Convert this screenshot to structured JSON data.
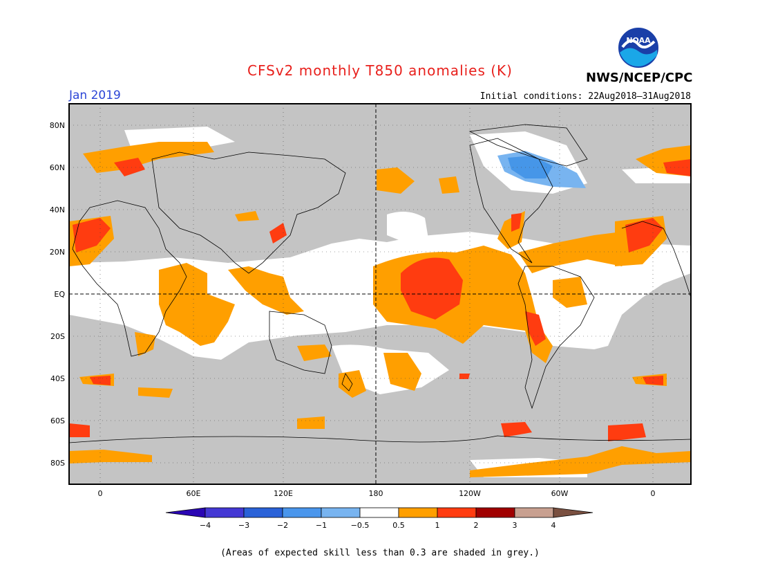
{
  "title": "CFSv2 monthly T850 anomalies (K)",
  "agency": "NWS/NCEP/CPC",
  "logo_text": "NOAA",
  "valid_month": "Jan 2019",
  "initial_conditions": "Initial conditions: 22Aug2018–31Aug2018",
  "footer_note": "(Areas of expected skill less than 0.3 are shaded in grey.)",
  "map": {
    "lat_labels": [
      "80N",
      "60N",
      "40N",
      "20N",
      "EQ",
      "20S",
      "40S",
      "60S",
      "80S"
    ],
    "lon_labels": [
      "0",
      "60E",
      "120E",
      "180",
      "120W",
      "60W",
      "0"
    ],
    "colors": {
      "grey_low_skill": "#c4c4c4",
      "neutral": "#ffffff",
      "warm_0_5_1": "#ff9f00",
      "warm_1_2": "#ff3c10",
      "cool_neg1_neg0_5": "#78b4f0",
      "cool_neg2_neg1": "#4696e8"
    }
  },
  "colorbar": {
    "tick_labels": [
      "−4",
      "−3",
      "−2",
      "−1",
      "−0.5",
      "0.5",
      "1",
      "2",
      "3",
      "4"
    ],
    "colors": [
      "#2a06b4",
      "#4438d4",
      "#2a62d8",
      "#4a96ec",
      "#78b4f0",
      "#ffffff",
      "#ff9f00",
      "#ff3c10",
      "#a00000",
      "#c8a090",
      "#7a5040"
    ]
  }
}
